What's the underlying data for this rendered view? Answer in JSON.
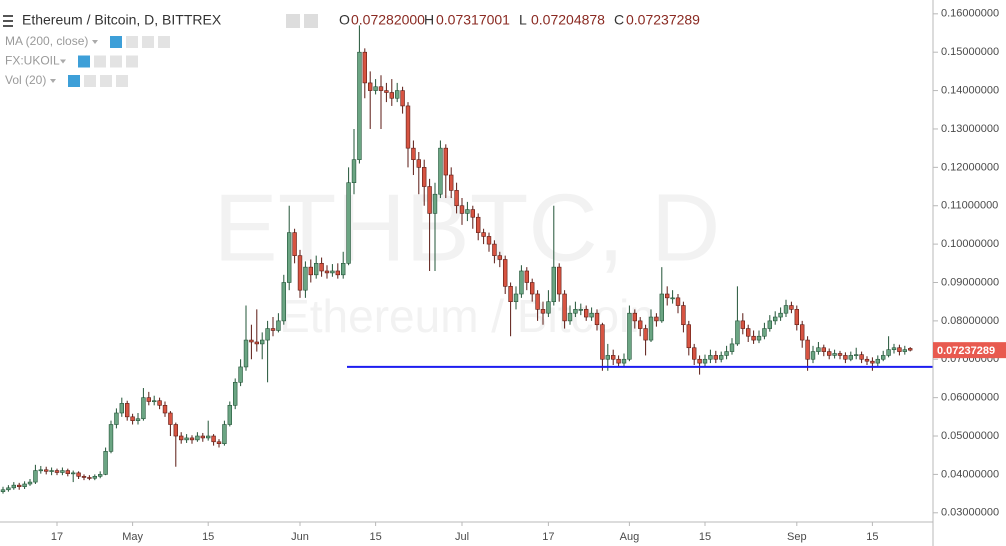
{
  "chart_data": {
    "type": "candlestick",
    "title": "Ethereum / Bitcoin, D, BITTREX",
    "ohlc": [
      {
        "label": "O",
        "value": "0.07282000"
      },
      {
        "label": "H",
        "value": "0.07317001"
      },
      {
        "label": "L",
        "value": "0.07204878"
      },
      {
        "label": "C",
        "value": "0.07237289"
      }
    ],
    "indicators": [
      "MA (200, close)",
      "FX:UKOIL",
      "Vol (20)"
    ],
    "watermark": [
      "ETHBTC, D",
      "Ethereum / Bitcoin"
    ],
    "categories": [
      null,
      null,
      null,
      null,
      null,
      null,
      null,
      null,
      null,
      null,
      "17",
      null,
      null,
      null,
      null,
      null,
      null,
      null,
      null,
      null,
      null,
      null,
      null,
      null,
      "May",
      null,
      null,
      null,
      null,
      null,
      null,
      null,
      null,
      null,
      null,
      null,
      null,
      null,
      "15",
      null,
      null,
      null,
      null,
      null,
      null,
      null,
      null,
      null,
      null,
      null,
      null,
      null,
      null,
      null,
      null,
      "Jun",
      null,
      null,
      null,
      null,
      null,
      null,
      null,
      null,
      null,
      null,
      null,
      null,
      null,
      "15",
      null,
      null,
      null,
      null,
      null,
      null,
      null,
      null,
      null,
      null,
      null,
      null,
      null,
      null,
      null,
      "Jul",
      null,
      null,
      null,
      null,
      null,
      null,
      null,
      null,
      null,
      null,
      null,
      null,
      null,
      null,
      null,
      "17",
      null,
      null,
      null,
      null,
      null,
      null,
      null,
      null,
      null,
      null,
      null,
      null,
      null,
      null,
      "Aug",
      null,
      null,
      null,
      null,
      null,
      null,
      null,
      null,
      null,
      null,
      null,
      null,
      null,
      "15",
      null,
      null,
      null,
      null,
      null,
      null,
      null,
      null,
      null,
      null,
      null,
      null,
      null,
      null,
      null,
      null,
      "Sep",
      null,
      null,
      null,
      null,
      null,
      null,
      null,
      null,
      null,
      null,
      null,
      null,
      null,
      "15",
      null,
      null,
      null,
      null,
      null,
      null,
      null
    ],
    "open": [
      0.0355,
      0.036,
      0.0365,
      0.0372,
      0.0368,
      0.0375,
      0.038,
      0.041,
      0.0412,
      0.0408,
      0.041,
      0.0405,
      0.041,
      0.0402,
      0.0404,
      0.0395,
      0.0392,
      0.039,
      0.0395,
      0.04,
      0.046,
      0.053,
      0.056,
      0.0585,
      0.055,
      0.054,
      0.0545,
      0.06,
      0.059,
      0.0592,
      0.058,
      0.056,
      0.053,
      0.05,
      0.049,
      0.0495,
      0.049,
      0.05,
      0.0495,
      0.05,
      0.0485,
      0.048,
      0.053,
      0.058,
      0.064,
      0.068,
      0.075,
      0.0745,
      0.074,
      0.075,
      0.078,
      0.0775,
      0.08,
      0.09,
      0.103,
      0.097,
      0.088,
      0.094,
      0.092,
      0.095,
      0.093,
      0.0925,
      0.093,
      0.092,
      0.095,
      0.116,
      0.122,
      0.15,
      0.142,
      0.14,
      0.141,
      0.14,
      0.1395,
      0.138,
      0.14,
      0.136,
      0.125,
      0.122,
      0.12,
      0.115,
      0.108,
      0.113,
      0.125,
      0.118,
      0.114,
      0.11,
      0.108,
      0.109,
      0.107,
      0.103,
      0.102,
      0.1,
      0.097,
      0.096,
      0.089,
      0.085,
      0.087,
      0.093,
      0.09,
      0.087,
      0.083,
      0.082,
      0.085,
      0.094,
      0.087,
      0.08,
      0.082,
      0.083,
      0.083,
      0.081,
      0.082,
      0.079,
      0.07,
      0.071,
      0.07,
      0.069,
      0.07,
      0.082,
      0.08,
      0.078,
      0.075,
      0.081,
      0.08,
      0.087,
      0.086,
      0.086,
      0.084,
      0.079,
      0.073,
      0.07,
      0.069,
      0.07,
      0.071,
      0.07,
      0.071,
      0.072,
      0.074,
      0.08,
      0.078,
      0.076,
      0.075,
      0.076,
      0.078,
      0.08,
      0.081,
      0.082,
      0.084,
      0.083,
      0.079,
      0.075,
      0.07,
      0.072,
      0.073,
      0.072,
      0.071,
      0.0715,
      0.071,
      0.07,
      0.071,
      0.0712,
      0.07,
      0.0695,
      0.069,
      0.07,
      0.071,
      0.0725,
      0.073,
      0.072,
      0.07282
    ],
    "high": [
      0.0368,
      0.0372,
      0.038,
      0.0378,
      0.0382,
      0.0388,
      0.0425,
      0.0422,
      0.042,
      0.0418,
      0.0415,
      0.0418,
      0.0415,
      0.041,
      0.0408,
      0.04,
      0.0398,
      0.04,
      0.0408,
      0.047,
      0.054,
      0.0572,
      0.06,
      0.0592,
      0.0558,
      0.056,
      0.0625,
      0.0615,
      0.0605,
      0.06,
      0.059,
      0.0565,
      0.0535,
      0.051,
      0.0505,
      0.0502,
      0.051,
      0.0508,
      0.054,
      0.0505,
      0.0492,
      0.054,
      0.059,
      0.065,
      0.07,
      0.084,
      0.079,
      0.083,
      0.077,
      0.08,
      0.081,
      0.082,
      0.092,
      0.11,
      0.104,
      0.0985,
      0.0955,
      0.096,
      0.097,
      0.0965,
      0.0945,
      0.0948,
      0.095,
      0.098,
      0.12,
      0.13,
      0.157,
      0.151,
      0.145,
      0.143,
      0.144,
      0.142,
      0.143,
      0.142,
      0.141,
      0.137,
      0.127,
      0.124,
      0.122,
      0.117,
      0.116,
      0.127,
      0.126,
      0.12,
      0.116,
      0.112,
      0.111,
      0.11,
      0.108,
      0.104,
      0.103,
      0.101,
      0.098,
      0.097,
      0.09,
      0.089,
      0.0945,
      0.094,
      0.091,
      0.088,
      0.085,
      0.088,
      0.11,
      0.095,
      0.088,
      0.084,
      0.085,
      0.0845,
      0.084,
      0.0835,
      0.083,
      0.0795,
      0.074,
      0.0725,
      0.071,
      0.0715,
      0.084,
      0.083,
      0.081,
      0.079,
      0.083,
      0.082,
      0.094,
      0.089,
      0.088,
      0.087,
      0.085,
      0.08,
      0.074,
      0.071,
      0.0712,
      0.0725,
      0.0722,
      0.072,
      0.0735,
      0.0755,
      0.089,
      0.082,
      0.079,
      0.0775,
      0.0775,
      0.0795,
      0.0815,
      0.0825,
      0.0835,
      0.0855,
      0.085,
      0.084,
      0.08,
      0.076,
      0.0735,
      0.0745,
      0.0738,
      0.0728,
      0.0725,
      0.0722,
      0.0718,
      0.072,
      0.073,
      0.072,
      0.0708,
      0.0705,
      0.071,
      0.0722,
      0.076,
      0.074,
      0.0738,
      0.0735,
      0.07317001
    ],
    "low": [
      0.035,
      0.0355,
      0.036,
      0.036,
      0.0362,
      0.037,
      0.0375,
      0.0402,
      0.04,
      0.0398,
      0.0398,
      0.0398,
      0.0395,
      0.038,
      0.0388,
      0.0385,
      0.0385,
      0.0385,
      0.039,
      0.0398,
      0.0455,
      0.052,
      0.055,
      0.054,
      0.053,
      0.053,
      0.054,
      0.058,
      0.058,
      0.057,
      0.055,
      0.05,
      0.042,
      0.048,
      0.0482,
      0.048,
      0.0485,
      0.0485,
      0.0488,
      0.0475,
      0.047,
      0.0475,
      0.0525,
      0.057,
      0.063,
      0.067,
      0.07,
      0.072,
      0.07,
      0.064,
      0.076,
      0.077,
      0.079,
      0.088,
      0.095,
      0.086,
      0.086,
      0.09,
      0.091,
      0.0915,
      0.091,
      0.0915,
      0.091,
      0.091,
      0.0945,
      0.113,
      0.121,
      0.138,
      0.13,
      0.139,
      0.13,
      0.137,
      0.136,
      0.137,
      0.134,
      0.12,
      0.118,
      0.113,
      0.11,
      0.093,
      0.093,
      0.112,
      0.112,
      0.112,
      0.108,
      0.105,
      0.106,
      0.104,
      0.101,
      0.1,
      0.098,
      0.095,
      0.094,
      0.087,
      0.076,
      0.083,
      0.086,
      0.088,
      0.085,
      0.08,
      0.079,
      0.081,
      0.084,
      0.085,
      0.078,
      0.079,
      0.081,
      0.0815,
      0.08,
      0.08,
      0.0775,
      0.067,
      0.067,
      0.0685,
      0.068,
      0.068,
      0.0695,
      0.078,
      0.076,
      0.071,
      0.0745,
      0.0785,
      0.0795,
      0.084,
      0.0845,
      0.082,
      0.077,
      0.071,
      0.0685,
      0.066,
      0.068,
      0.069,
      0.069,
      0.0692,
      0.07,
      0.0712,
      0.0735,
      0.0765,
      0.0745,
      0.074,
      0.0742,
      0.0752,
      0.0772,
      0.079,
      0.08,
      0.081,
      0.082,
      0.0775,
      0.073,
      0.067,
      0.069,
      0.0712,
      0.0708,
      0.07,
      0.0702,
      0.07,
      0.069,
      0.0695,
      0.07,
      0.069,
      0.0685,
      0.067,
      0.0682,
      0.0695,
      0.0705,
      0.0715,
      0.071,
      0.0712,
      0.07204878
    ],
    "close": [
      0.036,
      0.0365,
      0.0372,
      0.0368,
      0.0375,
      0.038,
      0.041,
      0.0412,
      0.0408,
      0.041,
      0.0405,
      0.041,
      0.0402,
      0.0404,
      0.0395,
      0.0392,
      0.039,
      0.0395,
      0.04,
      0.046,
      0.053,
      0.056,
      0.0585,
      0.055,
      0.054,
      0.0545,
      0.06,
      0.059,
      0.0592,
      0.058,
      0.056,
      0.053,
      0.05,
      0.049,
      0.0495,
      0.049,
      0.05,
      0.0495,
      0.05,
      0.0485,
      0.048,
      0.053,
      0.058,
      0.064,
      0.068,
      0.075,
      0.0745,
      0.074,
      0.075,
      0.078,
      0.0775,
      0.08,
      0.09,
      0.103,
      0.097,
      0.088,
      0.094,
      0.092,
      0.095,
      0.093,
      0.0925,
      0.093,
      0.092,
      0.095,
      0.116,
      0.122,
      0.15,
      0.142,
      0.14,
      0.141,
      0.14,
      0.1395,
      0.138,
      0.14,
      0.136,
      0.125,
      0.122,
      0.12,
      0.115,
      0.108,
      0.113,
      0.125,
      0.118,
      0.114,
      0.11,
      0.108,
      0.109,
      0.107,
      0.103,
      0.102,
      0.1,
      0.097,
      0.096,
      0.089,
      0.085,
      0.087,
      0.093,
      0.09,
      0.087,
      0.083,
      0.082,
      0.085,
      0.094,
      0.087,
      0.08,
      0.082,
      0.083,
      0.083,
      0.081,
      0.082,
      0.079,
      0.07,
      0.071,
      0.07,
      0.069,
      0.07,
      0.082,
      0.08,
      0.078,
      0.075,
      0.081,
      0.08,
      0.087,
      0.086,
      0.086,
      0.084,
      0.079,
      0.073,
      0.07,
      0.069,
      0.07,
      0.071,
      0.07,
      0.071,
      0.072,
      0.074,
      0.08,
      0.078,
      0.076,
      0.075,
      0.076,
      0.078,
      0.08,
      0.081,
      0.082,
      0.084,
      0.083,
      0.079,
      0.075,
      0.07,
      0.072,
      0.073,
      0.072,
      0.071,
      0.0715,
      0.071,
      0.07,
      0.071,
      0.0712,
      0.07,
      0.0695,
      0.069,
      0.07,
      0.071,
      0.0725,
      0.073,
      0.072,
      0.0725,
      0.07237289
    ],
    "up_color": "#6ba583",
    "down_color": "#d75442",
    "hline": 0.068,
    "hline_color": "#1c1cf0",
    "ylim": [
      0.0276,
      0.1636
    ],
    "yticks": [
      {
        "value": 0.03,
        "label": "0.03000000"
      },
      {
        "value": 0.04,
        "label": "0.04000000"
      },
      {
        "value": 0.05,
        "label": "0.05000000"
      },
      {
        "value": 0.06,
        "label": "0.06000000"
      },
      {
        "value": 0.07,
        "label": "0.07000000"
      },
      {
        "value": 0.08,
        "label": "0.08000000"
      },
      {
        "value": 0.09,
        "label": "0.09000000"
      },
      {
        "value": 0.1,
        "label": "0.10000000"
      },
      {
        "value": 0.11,
        "label": "0.11000000"
      },
      {
        "value": 0.12,
        "label": "0.12000000"
      },
      {
        "value": 0.13,
        "label": "0.13000000"
      },
      {
        "value": 0.14,
        "label": "0.14000000"
      },
      {
        "value": 0.15,
        "label": "0.15000000"
      },
      {
        "value": 0.16,
        "label": "0.16000000"
      }
    ]
  }
}
